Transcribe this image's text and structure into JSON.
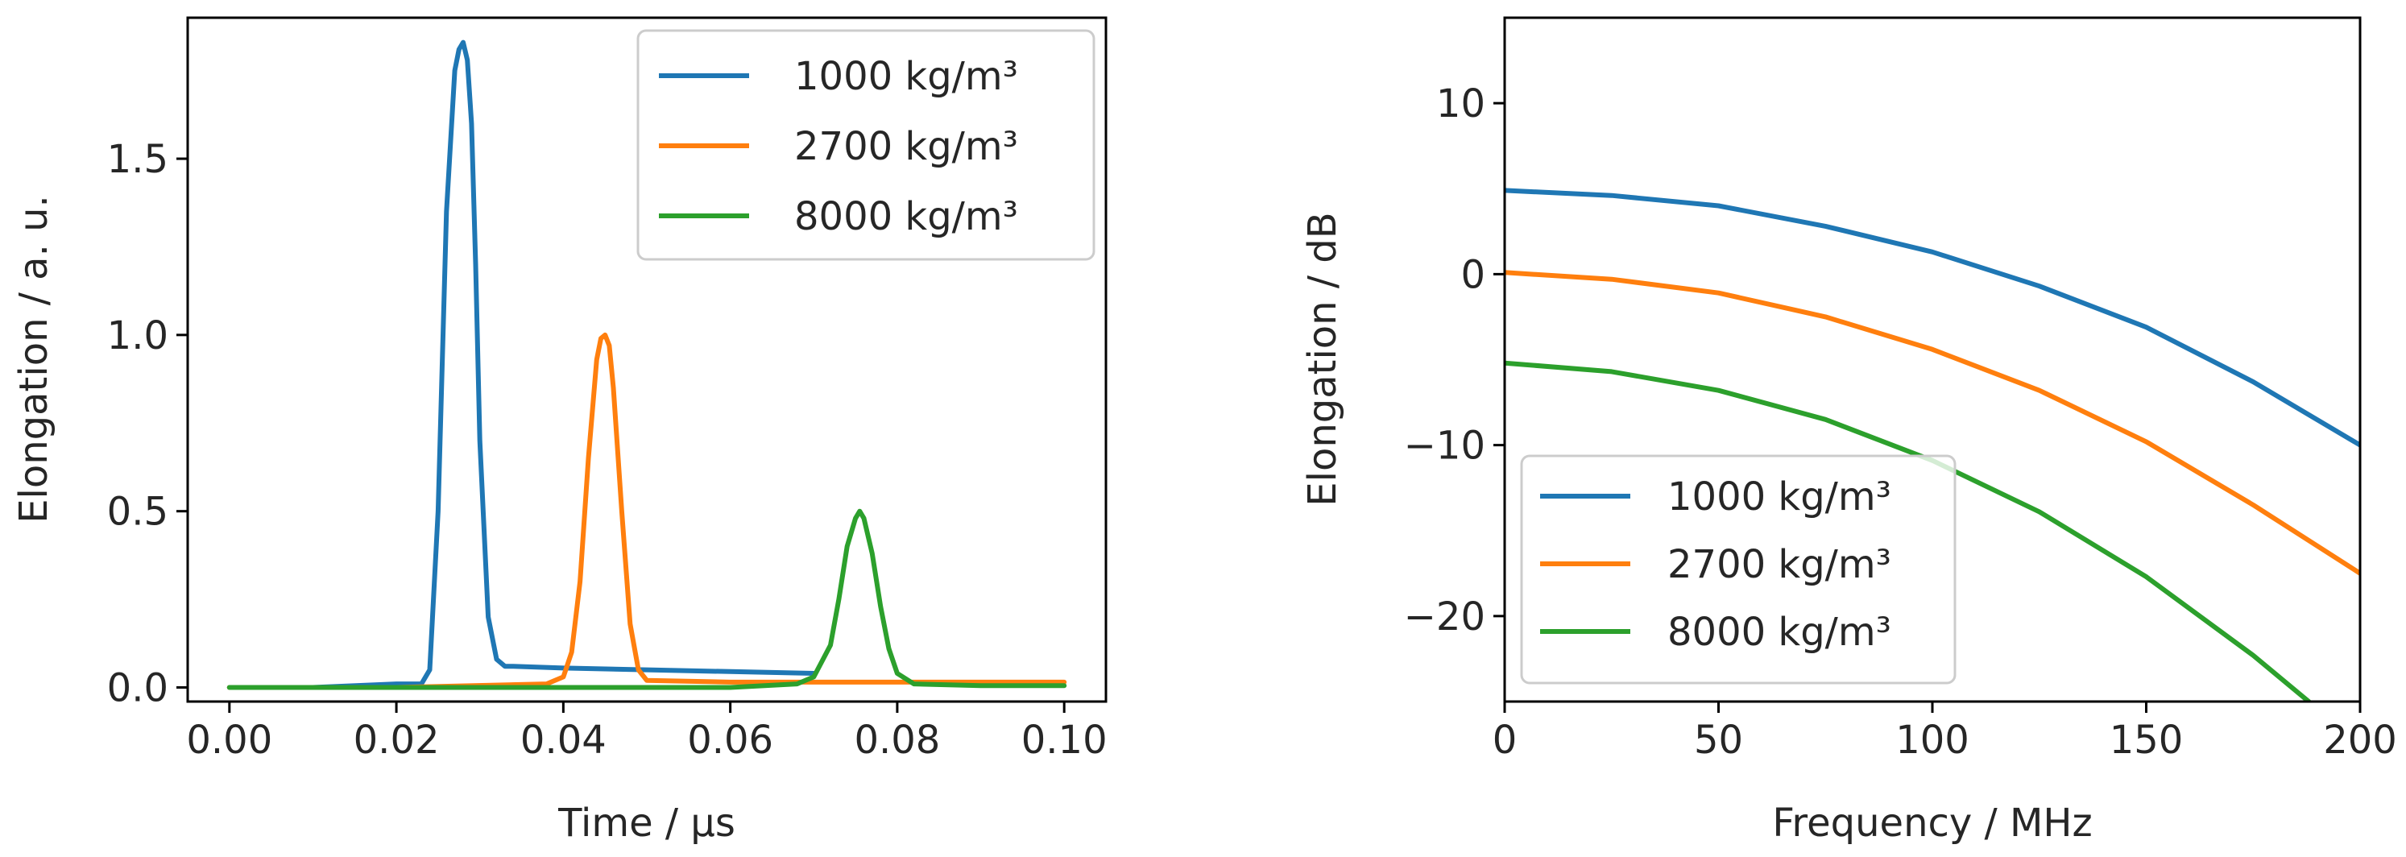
{
  "chart_data": [
    {
      "type": "line",
      "title": "",
      "xlabel": "Time / µs",
      "ylabel": "Elongation / a. u.",
      "xlim": [
        -0.005,
        0.105
      ],
      "ylim": [
        -0.04,
        1.9
      ],
      "xticks": [
        0.0,
        0.02,
        0.04,
        0.06,
        0.08,
        0.1
      ],
      "xtick_labels": [
        "0.00",
        "0.02",
        "0.04",
        "0.06",
        "0.08",
        "0.10"
      ],
      "yticks": [
        0.0,
        0.5,
        1.0,
        1.5
      ],
      "ytick_labels": [
        "0.0",
        "0.5",
        "1.0",
        "1.5"
      ],
      "grid": false,
      "legend_position": "top-right",
      "series": [
        {
          "name": "1000 kg/m³",
          "color": "#1f77b4",
          "x": [
            0.0,
            0.01,
            0.02,
            0.023,
            0.024,
            0.025,
            0.026,
            0.027,
            0.0275,
            0.028,
            0.0285,
            0.029,
            0.0295,
            0.03,
            0.031,
            0.032,
            0.033,
            0.034,
            0.04,
            0.05,
            0.06,
            0.07
          ],
          "y": [
            0.0,
            0.0,
            0.01,
            0.01,
            0.05,
            0.5,
            1.35,
            1.75,
            1.81,
            1.83,
            1.78,
            1.6,
            1.2,
            0.7,
            0.2,
            0.08,
            0.06,
            0.06,
            0.055,
            0.05,
            0.045,
            0.04
          ]
        },
        {
          "name": "2700 kg/m³",
          "color": "#ff7f0e",
          "x": [
            0.0,
            0.02,
            0.038,
            0.04,
            0.041,
            0.042,
            0.043,
            0.044,
            0.0445,
            0.045,
            0.0455,
            0.046,
            0.047,
            0.048,
            0.049,
            0.05,
            0.06,
            0.08,
            0.1
          ],
          "y": [
            0.0,
            0.0,
            0.01,
            0.03,
            0.1,
            0.3,
            0.65,
            0.93,
            0.99,
            1.0,
            0.97,
            0.85,
            0.5,
            0.18,
            0.05,
            0.02,
            0.015,
            0.015,
            0.015
          ],
          "ylabel": "Elongation / a. u."
        },
        {
          "name": "8000 kg/m³",
          "color": "#2ca02c",
          "x": [
            0.0,
            0.03,
            0.06,
            0.068,
            0.07,
            0.072,
            0.073,
            0.074,
            0.075,
            0.0755,
            0.076,
            0.077,
            0.078,
            0.079,
            0.08,
            0.082,
            0.09,
            0.1
          ],
          "y": [
            0.0,
            0.0,
            0.0,
            0.01,
            0.03,
            0.12,
            0.25,
            0.4,
            0.48,
            0.5,
            0.48,
            0.38,
            0.23,
            0.11,
            0.04,
            0.01,
            0.005,
            0.005
          ]
        }
      ]
    },
    {
      "type": "line",
      "title": "",
      "xlabel": "Frequency / MHz",
      "ylabel": "Elongation / dB",
      "xlim": [
        0,
        200
      ],
      "ylim": [
        -25,
        15
      ],
      "xticks": [
        0,
        50,
        100,
        150,
        200
      ],
      "xtick_labels": [
        "0",
        "50",
        "100",
        "150",
        "200"
      ],
      "yticks": [
        -20,
        -10,
        0,
        10
      ],
      "ytick_labels": [
        "−20",
        "−10",
        "0",
        "10"
      ],
      "grid": false,
      "legend_position": "bottom-left",
      "series": [
        {
          "name": "1000 kg/m³",
          "color": "#1f77b4",
          "x": [
            0,
            25,
            50,
            75,
            100,
            125,
            150,
            175,
            200
          ],
          "y": [
            4.9,
            4.6,
            4.0,
            2.8,
            1.3,
            -0.7,
            -3.1,
            -6.3,
            -10.0
          ]
        },
        {
          "name": "2700 kg/m³",
          "color": "#ff7f0e",
          "x": [
            0,
            25,
            50,
            75,
            100,
            125,
            150,
            175,
            200
          ],
          "y": [
            0.1,
            -0.3,
            -1.1,
            -2.5,
            -4.4,
            -6.8,
            -9.8,
            -13.5,
            -17.5
          ]
        },
        {
          "name": "8000 kg/m³",
          "color": "#2ca02c",
          "x": [
            0,
            25,
            50,
            75,
            100,
            125,
            150,
            175,
            188
          ],
          "y": [
            -5.2,
            -5.7,
            -6.8,
            -8.5,
            -10.9,
            -13.9,
            -17.7,
            -22.3,
            -25.0
          ]
        }
      ]
    }
  ]
}
